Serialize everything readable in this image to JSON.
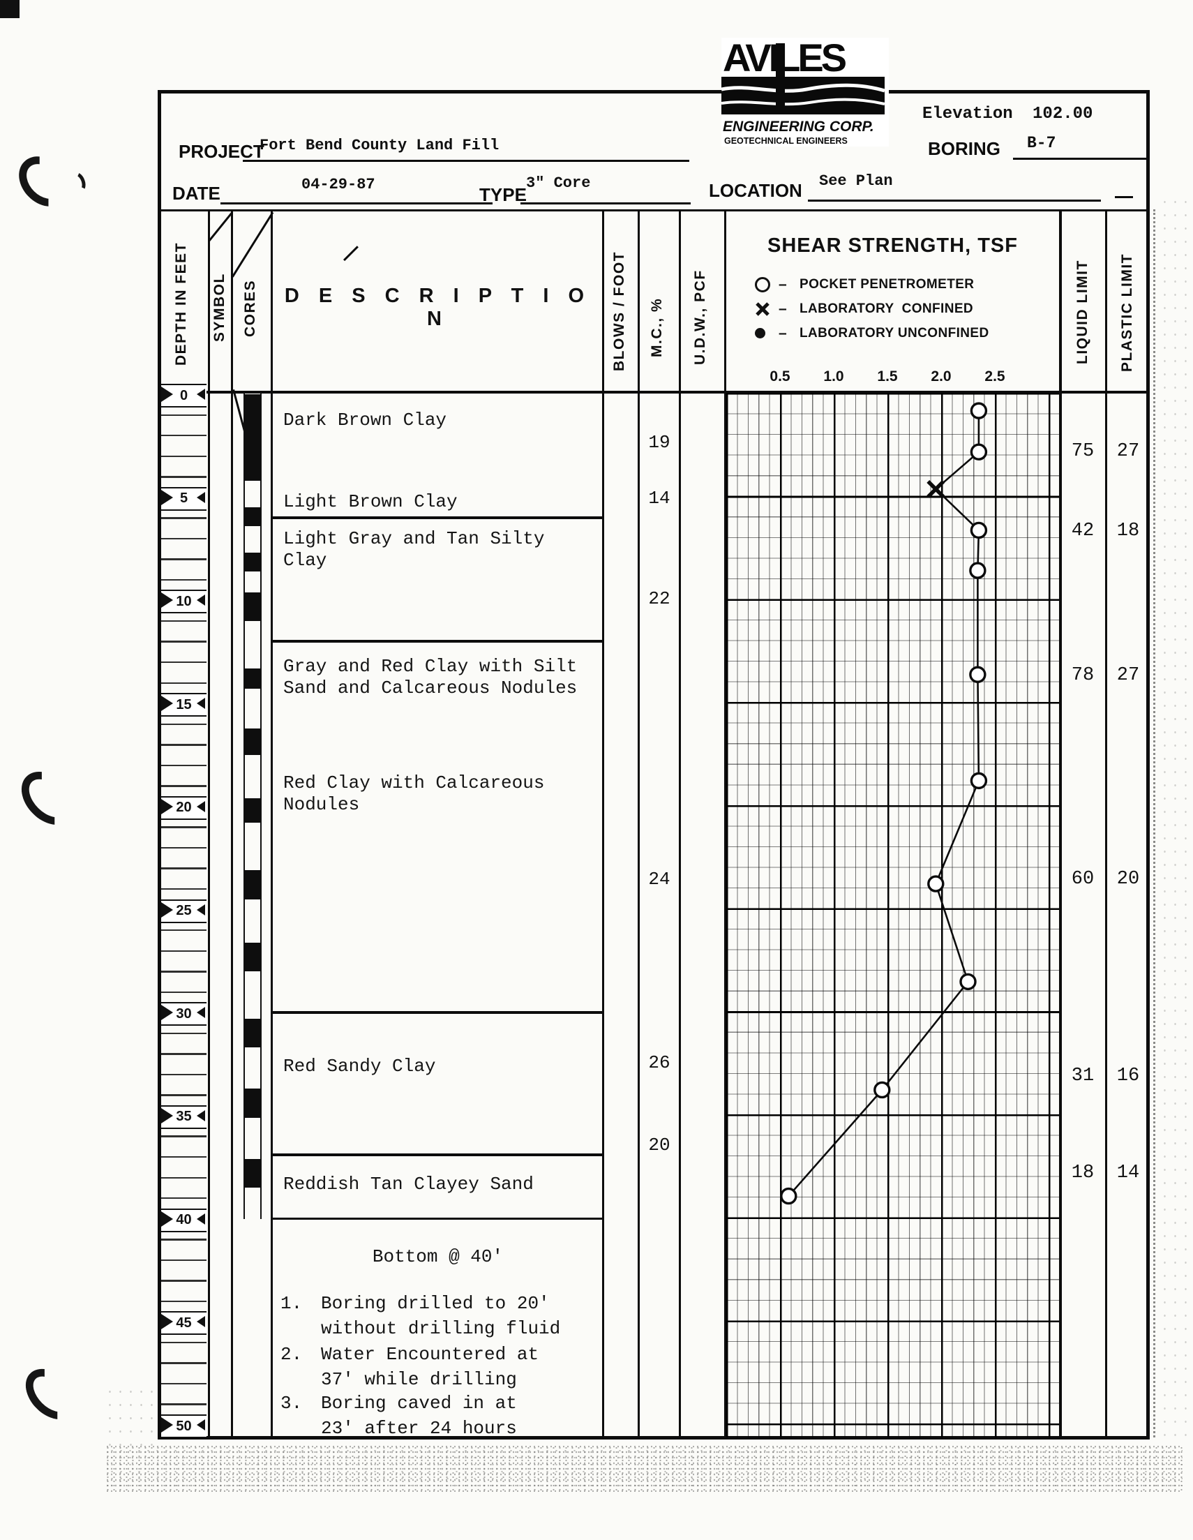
{
  "logo": {
    "name": "AVILES",
    "line1": "ENGINEERING CORP.",
    "line2": "GEOTECHNICAL ENGINEERS"
  },
  "header": {
    "elevation_label": "Elevation",
    "elevation_value": "102.00",
    "boring_label": "BORING",
    "boring_value": "B-7",
    "project_label": "PROJECT",
    "project_value": "Fort Bend County Land Fill",
    "date_label": "DATE",
    "date_value": "04-29-87",
    "type_label": "TYPE",
    "type_value": "3\" Core",
    "location_label": "LOCATION",
    "location_value": "See Plan"
  },
  "columns": {
    "depth": "DEPTH IN FEET",
    "symbol": "SYMBOL",
    "cores": "CORES",
    "description": "D E S C R I P T I O N",
    "blows": "BLOWS / FOOT",
    "mc": "M.C., %",
    "udw": "U.D.W., PCF",
    "liquid": "LIQUID LIMIT",
    "plastic": "PLASTIC LIMIT"
  },
  "depth_scale": {
    "unit": "feet",
    "labels": [
      0,
      5,
      10,
      15,
      20,
      25,
      30,
      35,
      40,
      45,
      50
    ]
  },
  "chart_data": {
    "type": "scatter-line",
    "title": "SHEAR STRENGTH, TSF",
    "xlabel_ticks": [
      0.5,
      1.0,
      1.5,
      2.0,
      2.5
    ],
    "xlim": [
      0,
      3.1
    ],
    "ylabel": "DEPTH IN FEET",
    "ylim": [
      0,
      50.8
    ],
    "grid": "on",
    "legend_position": "top",
    "legend_dash": "–",
    "legend": [
      {
        "symbol": "open-circle",
        "label": "POCKET PENETROMETER"
      },
      {
        "symbol": "x-mark",
        "label": "LABORATORY  CONFINED"
      },
      {
        "symbol": "filled-circle",
        "label": "LABORATORY UNCONFINED"
      }
    ],
    "series": [
      {
        "name": "shear-strength-profile",
        "points": [
          {
            "depth_ft": 0.8,
            "tsf": 2.35,
            "symbol": "pocket-penetrometer"
          },
          {
            "depth_ft": 2.8,
            "tsf": 2.35,
            "symbol": "pocket-penetrometer"
          },
          {
            "depth_ft": 4.6,
            "tsf": 1.95,
            "symbol": "laboratory-confined"
          },
          {
            "depth_ft": 6.6,
            "tsf": 2.35,
            "symbol": "pocket-penetrometer"
          },
          {
            "depth_ft": 8.55,
            "tsf": 2.34,
            "symbol": "pocket-penetrometer"
          },
          {
            "depth_ft": 13.6,
            "tsf": 2.34,
            "symbol": "pocket-penetrometer"
          },
          {
            "depth_ft": 18.75,
            "tsf": 2.35,
            "symbol": "pocket-penetrometer"
          },
          {
            "depth_ft": 23.75,
            "tsf": 1.95,
            "symbol": "pocket-penetrometer"
          },
          {
            "depth_ft": 28.5,
            "tsf": 2.25,
            "symbol": "pocket-penetrometer"
          },
          {
            "depth_ft": 33.75,
            "tsf": 1.45,
            "symbol": "pocket-penetrometer"
          },
          {
            "depth_ft": 38.9,
            "tsf": 0.58,
            "symbol": "pocket-penetrometer"
          }
        ]
      }
    ]
  },
  "layers": [
    {
      "top_ft": 0,
      "bottom_ft": 6,
      "descriptions": [
        {
          "text": "Dark Brown Clay",
          "at_ft": 0.75
        },
        {
          "text": "Light Brown Clay",
          "at_ft": 4.72
        }
      ]
    },
    {
      "top_ft": 6,
      "bottom_ft": 12,
      "descriptions": [
        {
          "text": "Light Gray and Tan Silty Clay",
          "at_ft": 6.5
        }
      ]
    },
    {
      "top_ft": 12,
      "bottom_ft": 30,
      "descriptions": [
        {
          "text": "Gray and Red Clay with Silt Sand and Calcareous Nodules",
          "at_ft": 12.7
        },
        {
          "text": "Red Clay with Calcareous Nodules",
          "at_ft": 18.35
        }
      ]
    },
    {
      "top_ft": 30,
      "bottom_ft": 36.9,
      "descriptions": [
        {
          "text": "Red Sandy Clay",
          "at_ft": 32.1
        }
      ]
    },
    {
      "top_ft": 36.9,
      "bottom_ft": 40,
      "descriptions": [
        {
          "text": "Reddish Tan Clayey Sand",
          "at_ft": 37.8
        }
      ]
    }
  ],
  "mc_values": [
    {
      "depth_ft": 2.3,
      "value": 19
    },
    {
      "depth_ft": 5.0,
      "value": 14
    },
    {
      "depth_ft": 9.9,
      "value": 22
    },
    {
      "depth_ft": 23.5,
      "value": 24
    },
    {
      "depth_ft": 32.4,
      "value": 26
    },
    {
      "depth_ft": 36.4,
      "value": 20
    }
  ],
  "atterberg_values": [
    {
      "depth_ft": 2.75,
      "liquid_limit": 75,
      "plastic_limit": 27
    },
    {
      "depth_ft": 6.6,
      "liquid_limit": 42,
      "plastic_limit": 18
    },
    {
      "depth_ft": 13.6,
      "liquid_limit": 78,
      "plastic_limit": 27
    },
    {
      "depth_ft": 23.5,
      "liquid_limit": 60,
      "plastic_limit": 20
    },
    {
      "depth_ft": 33.05,
      "liquid_limit": 31,
      "plastic_limit": 16
    },
    {
      "depth_ft": 37.75,
      "liquid_limit": 18,
      "plastic_limit": 14
    }
  ],
  "cores_runs_ft": [
    [
      0,
      4.2
    ],
    [
      5.5,
      6.4
    ],
    [
      7.7,
      8.6
    ],
    [
      9.6,
      11.0
    ],
    [
      13.3,
      14.3
    ],
    [
      16.2,
      17.5
    ],
    [
      19.6,
      20.8
    ],
    [
      23.1,
      24.5
    ],
    [
      26.6,
      28.0
    ],
    [
      30.3,
      31.7
    ],
    [
      33.7,
      35.1
    ],
    [
      37.1,
      38.5
    ]
  ],
  "notes": {
    "bottom": "Bottom @ 40'",
    "items": [
      {
        "num": "1.",
        "text": "Boring drilled to 20'\nwithout drilling fluid"
      },
      {
        "num": "2.",
        "text": "Water Encountered at\n37' while drilling"
      },
      {
        "num": "3.",
        "text": "Boring caved in at\n23' after 24 hours"
      }
    ]
  }
}
